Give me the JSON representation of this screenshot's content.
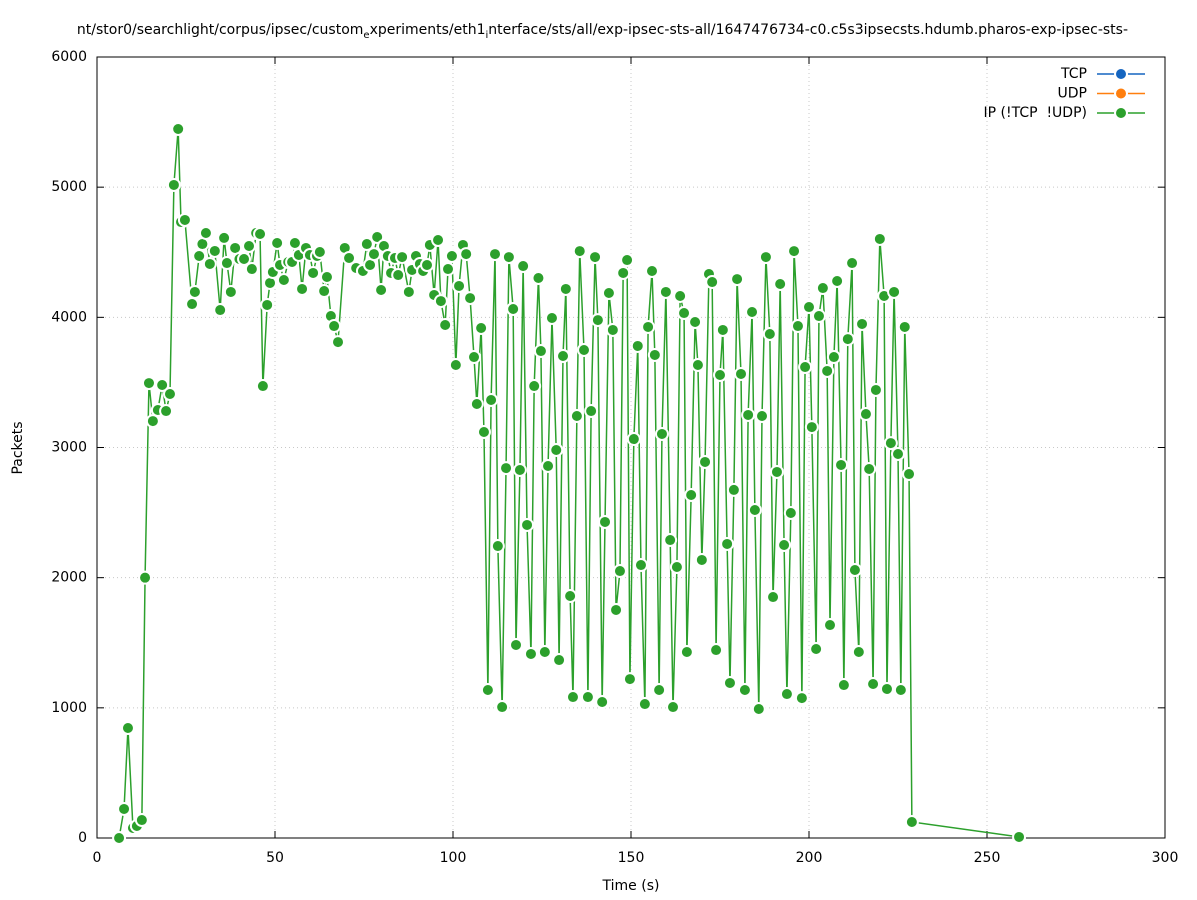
{
  "chart_data": {
    "type": "line",
    "title": [
      "nt/stor0/searchlight/corpus/ipsec/custom",
      "e",
      "xperiments/eth1",
      "i",
      "nterface/sts/all/exp-ipsec-sts-all/1647476734-c0.c5s3ipsecsts.hdumb.pharos-exp-ipsec-sts-"
    ],
    "xlabel": "Time (s)",
    "ylabel": "Packets",
    "xlim": [
      0,
      300
    ],
    "xticks": [
      0,
      50,
      100,
      150,
      200,
      250,
      300
    ],
    "ylim": [
      0,
      6000
    ],
    "yticks": [
      0,
      1000,
      2000,
      3000,
      4000,
      5000,
      6000
    ],
    "grid": true,
    "legend": "top-right",
    "series": [
      {
        "name": "TCP",
        "color": "#1565c0",
        "x": [],
        "values": []
      },
      {
        "name": "UDP",
        "color": "#ff7f0e",
        "x": [],
        "values": []
      },
      {
        "name": "IP (!TCP  !UDP)",
        "color": "#2ca02c",
        "x": [
          6.2,
          7.6,
          8.7,
          10.1,
          11.2,
          12.6,
          13.5,
          14.6,
          15.7,
          17.1,
          18.3,
          19.4,
          20.5,
          21.6,
          22.8,
          23.6,
          24.7,
          26.7,
          27.5,
          28.7,
          29.6,
          30.6,
          31.7,
          33.1,
          34.6,
          35.7,
          36.5,
          37.6,
          38.8,
          40.0,
          41.3,
          42.7,
          43.5,
          44.7,
          45.8,
          46.6,
          47.8,
          48.6,
          49.4,
          50.6,
          51.4,
          52.5,
          53.7,
          54.8,
          55.6,
          56.7,
          57.6,
          58.7,
          59.8,
          60.7,
          61.8,
          62.6,
          63.8,
          64.6,
          65.7,
          66.6,
          67.7,
          69.6,
          70.8,
          72.8,
          74.7,
          75.8,
          76.7,
          77.8,
          78.7,
          79.8,
          80.6,
          81.7,
          82.6,
          83.7,
          84.6,
          85.7,
          87.6,
          88.5,
          89.6,
          90.7,
          91.6,
          92.7,
          93.5,
          94.7,
          95.8,
          96.6,
          97.8,
          98.6,
          99.7,
          100.8,
          101.7,
          102.8,
          103.7,
          104.8,
          105.9,
          106.7,
          107.9,
          108.7,
          109.8,
          110.7,
          111.8,
          112.6,
          113.8,
          114.9,
          115.7,
          116.9,
          117.7,
          118.8,
          119.7,
          120.8,
          121.9,
          122.8,
          124.0,
          124.7,
          125.8,
          126.7,
          127.8,
          129.0,
          129.8,
          130.9,
          131.7,
          132.9,
          133.7,
          134.8,
          135.6,
          136.8,
          137.9,
          138.8,
          139.9,
          140.7,
          141.9,
          142.7,
          143.8,
          144.9,
          145.8,
          146.9,
          147.8,
          148.9,
          149.7,
          150.8,
          151.9,
          152.8,
          153.9,
          154.8,
          155.9,
          156.7,
          157.9,
          158.7,
          159.8,
          161.0,
          161.8,
          162.9,
          163.8,
          164.9,
          165.7,
          166.9,
          168.0,
          168.8,
          169.9,
          170.8,
          171.9,
          172.8,
          173.9,
          175.0,
          175.8,
          177.0,
          177.8,
          178.9,
          179.8,
          180.9,
          182.0,
          182.9,
          184.0,
          184.8,
          185.9,
          186.8,
          187.9,
          189.0,
          189.9,
          191.0,
          191.9,
          193.0,
          193.8,
          194.9,
          195.8,
          196.9,
          198.0,
          198.9,
          200.0,
          200.8,
          202.0,
          202.8,
          203.9,
          205.1,
          205.9,
          207.0,
          207.9,
          209.0,
          209.8,
          210.9,
          212.1,
          212.9,
          214.0,
          214.9,
          216.0,
          216.9,
          218.0,
          218.8,
          219.9,
          221.1,
          221.9,
          223.0,
          223.9,
          225.0,
          225.8,
          226.9,
          228.1,
          228.9,
          259.0
        ],
        "values": [
          0,
          223,
          845,
          77,
          92,
          138,
          2000,
          3495,
          3203,
          3288,
          3480,
          3280,
          3411,
          5017,
          5447,
          4732,
          4748,
          4102,
          4195,
          4471,
          4563,
          4648,
          4410,
          4510,
          4056,
          4610,
          4417,
          4195,
          4533,
          4448,
          4448,
          4548,
          4371,
          4648,
          4640,
          3472,
          4095,
          4264,
          4348,
          4571,
          4402,
          4287,
          4425,
          4425,
          4571,
          4479,
          4218,
          4533,
          4479,
          4341,
          4471,
          4502,
          4202,
          4310,
          4010,
          3933,
          3810,
          4533,
          4456,
          4379,
          4356,
          4563,
          4402,
          4486,
          4617,
          4210,
          4548,
          4471,
          4341,
          4456,
          4325,
          4463,
          4195,
          4364,
          4471,
          4410,
          4356,
          4402,
          4556,
          4172,
          4594,
          4125,
          3941,
          4371,
          4471,
          3634,
          4241,
          4556,
          4486,
          4148,
          3695,
          3334,
          3918,
          3119,
          1137,
          3365,
          4486,
          2243,
          1006,
          2842,
          4463,
          4064,
          1483,
          2827,
          4394,
          2405,
          1414,
          3472,
          4302,
          3741,
          1429,
          2858,
          3995,
          2981,
          1367,
          3703,
          4218,
          1859,
          1083,
          3242,
          4509,
          3749,
          1083,
          3280,
          4463,
          3979,
          1045,
          2428,
          4187,
          3903,
          1752,
          2051,
          4341,
          4440,
          1221,
          3065,
          3780,
          2097,
          1029,
          3926,
          4356,
          3711,
          1137,
          3104,
          4195,
          2289,
          1006,
          2082,
          4164,
          4033,
          1429,
          2635,
          3964,
          3634,
          2136,
          2889,
          4333,
          4271,
          1444,
          3557,
          3903,
          2259,
          1191,
          2674,
          4294,
          3565,
          1137,
          3250,
          4041,
          2520,
          991,
          3242,
          4463,
          3872,
          1851,
          2812,
          4256,
          2251,
          1106,
          2497,
          4509,
          3933,
          1075,
          3618,
          4079,
          3157,
          1452,
          4010,
          4225,
          3588,
          1636,
          3695,
          4279,
          2866,
          1175,
          3833,
          4417,
          2059,
          1429,
          3949,
          3257,
          2835,
          1183,
          3442,
          4602,
          4164,
          1145,
          3034,
          4195,
          2950,
          1137,
          3926,
          2796,
          123,
          8
        ]
      }
    ]
  }
}
